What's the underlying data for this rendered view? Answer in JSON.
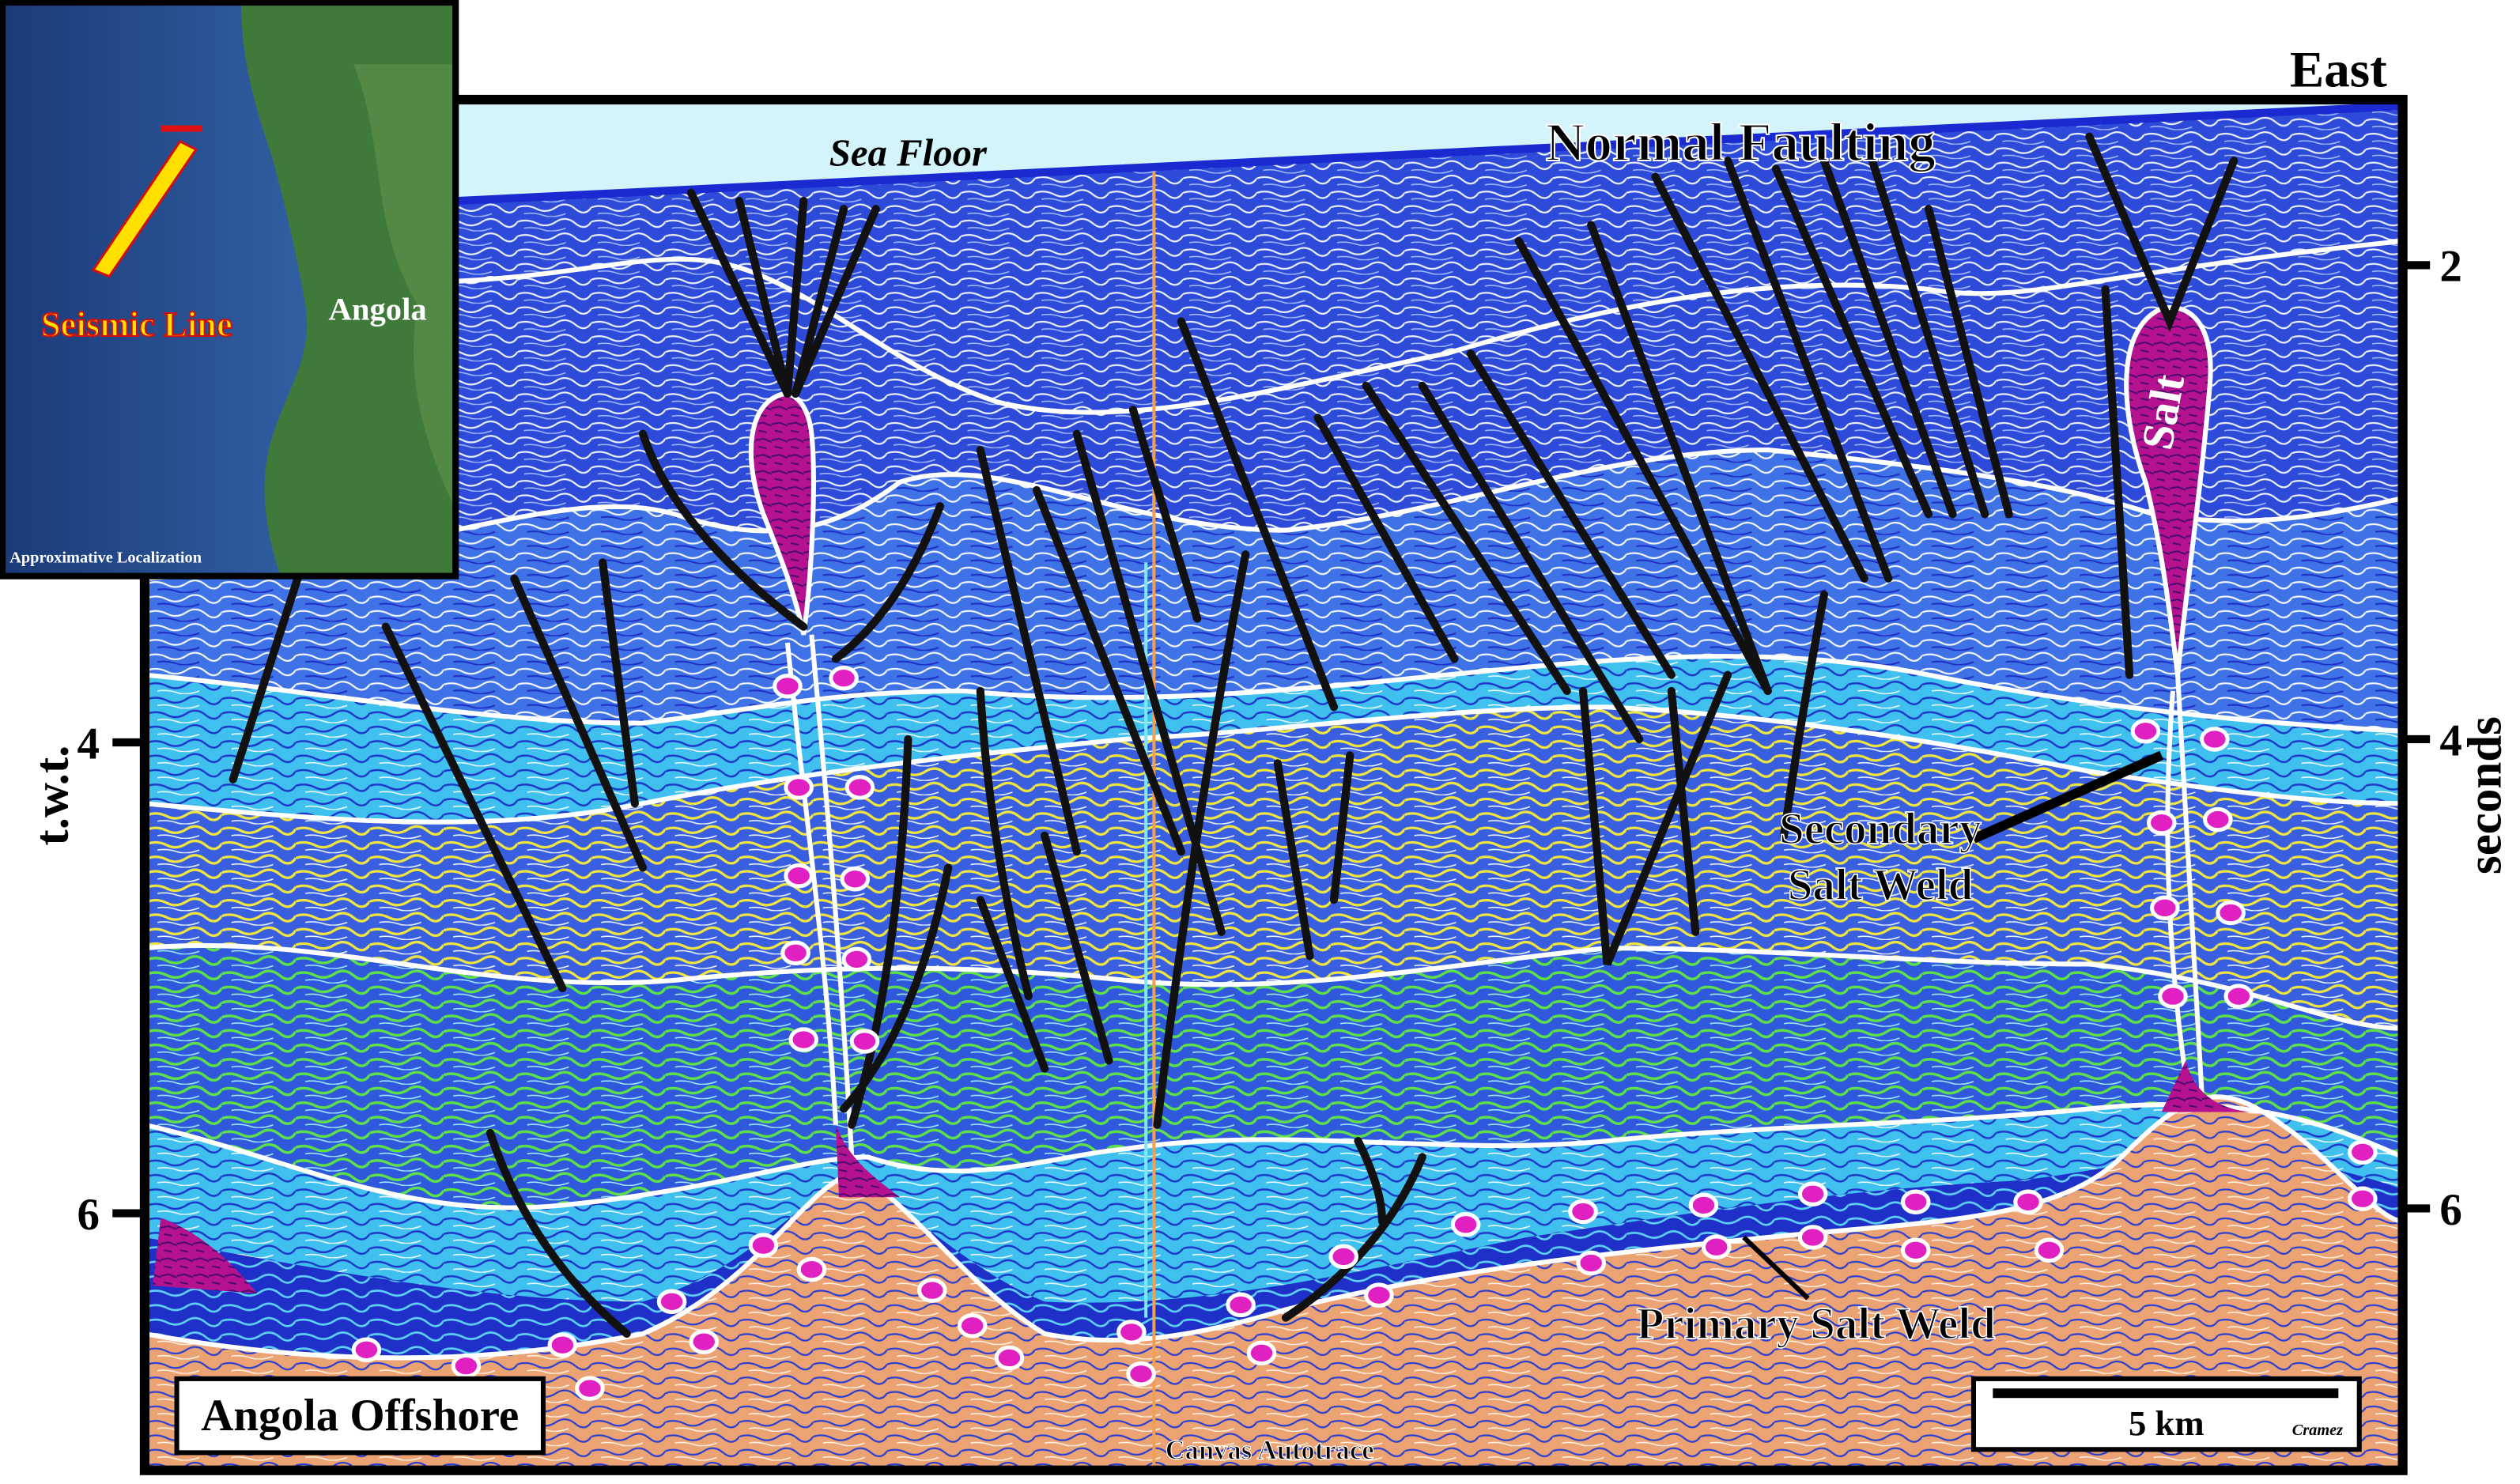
{
  "inset": {
    "label": "Seismic Line",
    "country": "Angola",
    "caption": "Approximative Localization"
  },
  "section": {
    "east": "East",
    "sea_floor": "Sea Floor",
    "normal_faulting": "Normal Faulting",
    "salt": "Salt",
    "secondary_weld": [
      "Secondary",
      "Salt Weld"
    ],
    "primary_weld": "Primary Salt Weld",
    "region": "Angola Offshore",
    "scale": "5 km",
    "author": "Cramez",
    "software": "Canvas Autotrace"
  },
  "axes": {
    "left_title": "t.w.t.",
    "right_title": "seconds",
    "left_ticks": [
      "4",
      "6"
    ],
    "right_ticks": [
      "2",
      "4",
      "6"
    ]
  }
}
